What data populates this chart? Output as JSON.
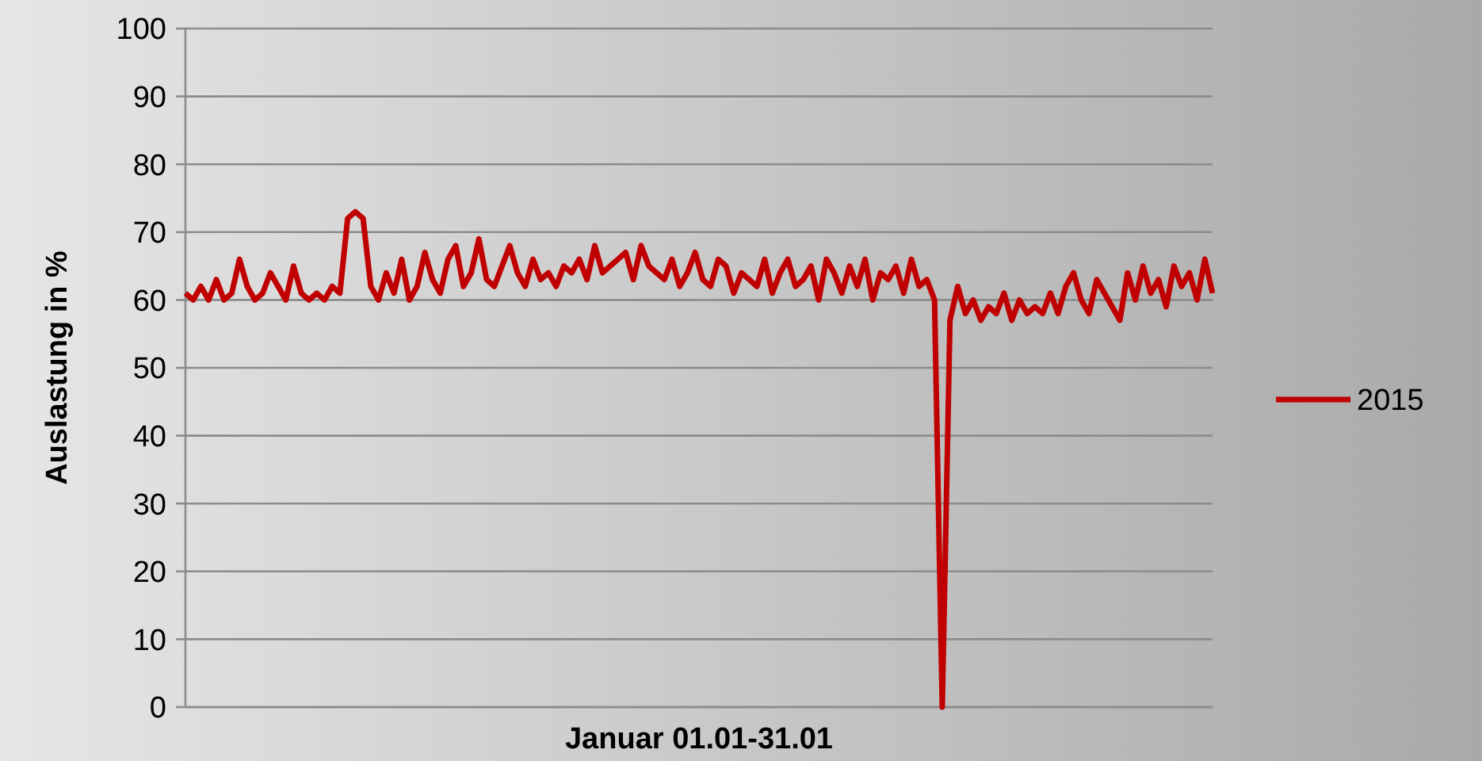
{
  "chart_data": {
    "type": "line",
    "xlabel": "Januar 01.01-31.01",
    "ylabel": "Auslastung in %",
    "ylim": [
      0,
      100
    ],
    "yticks": [
      0,
      10,
      20,
      30,
      40,
      50,
      60,
      70,
      80,
      90,
      100
    ],
    "grid": "y",
    "legend": "right",
    "line_style": "solid",
    "categories": [
      null,
      null,
      null,
      null,
      null,
      null,
      null,
      null,
      null,
      null,
      null,
      null,
      null,
      null,
      null,
      null,
      null,
      null,
      null,
      null,
      null,
      null,
      null,
      null,
      null,
      null,
      null,
      null,
      null,
      null,
      null,
      null,
      null,
      null,
      null,
      null,
      null,
      null,
      null,
      null,
      null,
      null,
      null,
      null,
      null,
      null,
      null,
      null,
      null,
      null,
      null,
      null,
      null,
      null,
      null,
      null,
      null,
      null,
      null,
      null,
      null,
      null,
      null,
      null,
      null,
      null,
      null,
      null,
      null,
      null,
      null,
      null,
      null,
      null,
      null,
      null,
      null,
      null,
      null,
      null,
      null,
      null,
      null,
      null,
      null,
      null,
      null,
      null,
      null,
      null,
      null,
      null,
      null,
      null,
      null,
      null,
      null,
      null,
      null,
      null,
      null,
      null,
      null,
      null,
      null,
      null,
      null,
      null,
      null,
      null,
      null,
      null,
      null,
      null,
      null,
      null,
      null,
      null,
      null,
      null,
      null,
      null,
      null,
      null,
      null,
      null,
      null,
      null,
      null,
      null,
      null,
      null,
      null,
      null
    ],
    "series": [
      {
        "name": "2015",
        "color": "#c00000",
        "values": [
          61,
          60,
          62,
          60,
          63,
          60,
          61,
          66,
          62,
          60,
          61,
          64,
          62,
          60,
          65,
          61,
          60,
          61,
          60,
          62,
          61,
          72,
          73,
          72,
          62,
          60,
          64,
          61,
          66,
          60,
          62,
          67,
          63,
          61,
          66,
          68,
          62,
          64,
          69,
          63,
          62,
          65,
          68,
          64,
          62,
          66,
          63,
          64,
          62,
          65,
          64,
          66,
          63,
          68,
          64,
          65,
          66,
          67,
          63,
          68,
          65,
          64,
          63,
          66,
          62,
          64,
          67,
          63,
          62,
          66,
          65,
          61,
          64,
          63,
          62,
          66,
          61,
          64,
          66,
          62,
          63,
          65,
          60,
          66,
          64,
          61,
          65,
          62,
          66,
          60,
          64,
          63,
          65,
          61,
          66,
          62,
          63,
          60,
          0,
          57,
          62,
          58,
          60,
          57,
          59,
          58,
          61,
          57,
          60,
          58,
          59,
          58,
          61,
          58,
          62,
          64,
          60,
          58,
          63,
          61,
          59,
          57,
          64,
          60,
          65,
          61,
          63,
          59,
          65,
          62,
          64,
          60,
          66,
          61
        ]
      }
    ]
  }
}
